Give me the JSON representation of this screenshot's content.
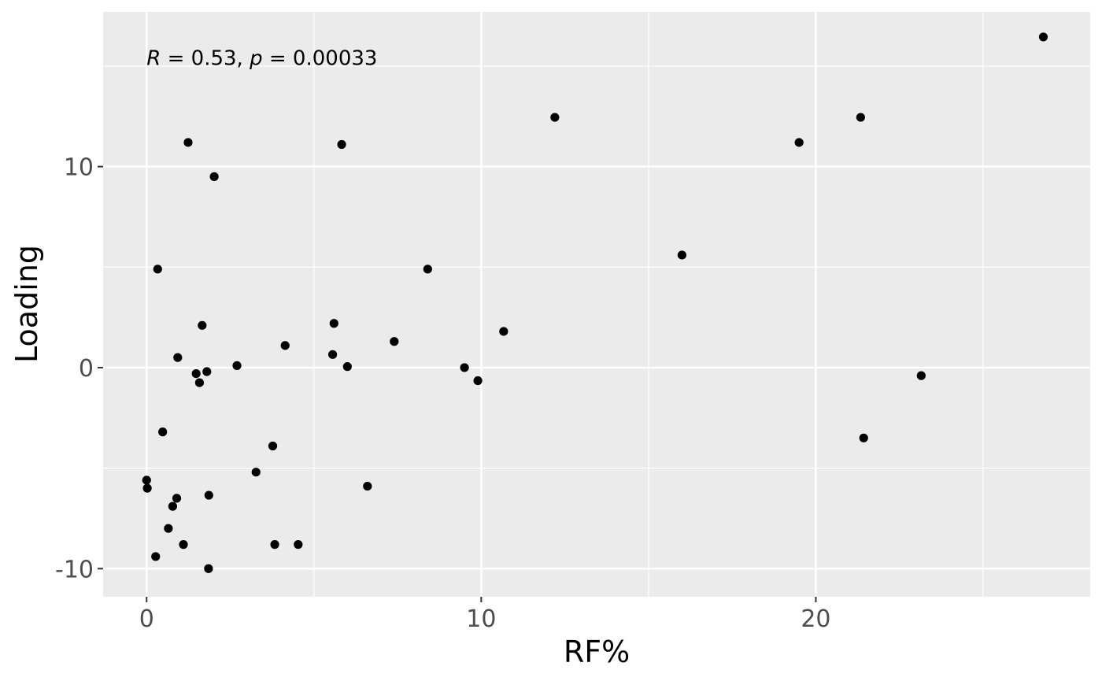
{
  "chart_data": {
    "type": "scatter",
    "title": "",
    "xlabel": "RF%",
    "ylabel": "Loading",
    "xlim": [
      -1.3,
      28.2
    ],
    "ylim": [
      -11.4,
      17.7
    ],
    "x_major_ticks": [
      0,
      10,
      20
    ],
    "x_minor_ticks": [
      5,
      15,
      25
    ],
    "y_major_ticks": [
      -10,
      0,
      10
    ],
    "y_minor_ticks": [
      -5,
      5,
      15
    ],
    "x_tick_labels": [
      "0",
      "10",
      "20"
    ],
    "y_tick_labels": [
      "-10",
      "0",
      "10"
    ],
    "grid": true,
    "annotation": {
      "r_label": "R",
      "r_value": "0.53",
      "p_label": "p",
      "p_value": "0.00033",
      "x": 0.0,
      "y": 15.4
    },
    "colors": {
      "panel_background": "#ebebeb",
      "grid_line": "#ffffff",
      "point": "#000000"
    },
    "points": [
      {
        "x": 0.0,
        "y": -5.6
      },
      {
        "x": 0.02,
        "y": -6.0
      },
      {
        "x": 0.27,
        "y": -9.4
      },
      {
        "x": 0.33,
        "y": 4.9
      },
      {
        "x": 0.48,
        "y": -3.2
      },
      {
        "x": 0.65,
        "y": -8.0
      },
      {
        "x": 0.78,
        "y": -6.9
      },
      {
        "x": 0.9,
        "y": -6.5
      },
      {
        "x": 0.93,
        "y": 0.5
      },
      {
        "x": 1.1,
        "y": -8.8
      },
      {
        "x": 1.24,
        "y": 11.2
      },
      {
        "x": 1.48,
        "y": -0.3
      },
      {
        "x": 1.58,
        "y": -0.75
      },
      {
        "x": 1.66,
        "y": 2.1
      },
      {
        "x": 1.8,
        "y": -0.2
      },
      {
        "x": 1.85,
        "y": -10.0
      },
      {
        "x": 1.86,
        "y": -6.35
      },
      {
        "x": 2.02,
        "y": 9.5
      },
      {
        "x": 2.7,
        "y": 0.1
      },
      {
        "x": 3.27,
        "y": -5.2
      },
      {
        "x": 3.77,
        "y": -3.9
      },
      {
        "x": 3.83,
        "y": -8.8
      },
      {
        "x": 4.14,
        "y": 1.1
      },
      {
        "x": 4.53,
        "y": -8.8
      },
      {
        "x": 5.56,
        "y": 0.65
      },
      {
        "x": 5.6,
        "y": 2.2
      },
      {
        "x": 5.83,
        "y": 11.1
      },
      {
        "x": 6.0,
        "y": 0.05
      },
      {
        "x": 6.6,
        "y": -5.9
      },
      {
        "x": 7.4,
        "y": 1.3
      },
      {
        "x": 8.4,
        "y": 4.9
      },
      {
        "x": 9.5,
        "y": 0.0
      },
      {
        "x": 9.9,
        "y": -0.65
      },
      {
        "x": 10.67,
        "y": 1.8
      },
      {
        "x": 12.2,
        "y": 12.45
      },
      {
        "x": 16.0,
        "y": 5.6
      },
      {
        "x": 19.5,
        "y": 11.2
      },
      {
        "x": 21.34,
        "y": 12.45
      },
      {
        "x": 21.43,
        "y": -3.5
      },
      {
        "x": 23.15,
        "y": -0.4
      },
      {
        "x": 26.8,
        "y": 16.45
      }
    ]
  }
}
